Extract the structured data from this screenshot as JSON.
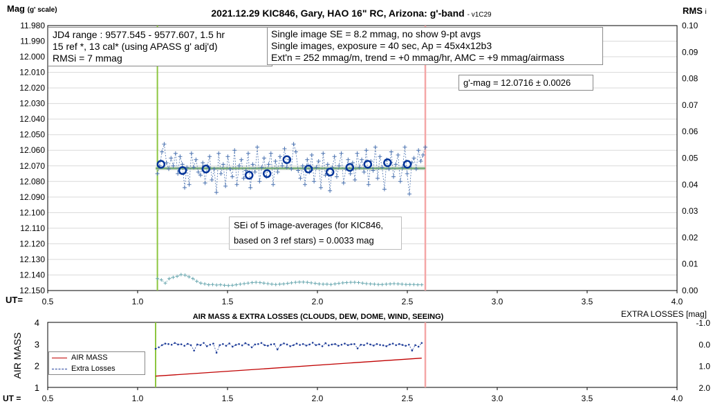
{
  "top_chart": {
    "title_main": "2021.12.29 KIC846, Gary, HAO 16\" RC, Arizona: g'-band",
    "title_version": "- v1C29",
    "ylabel_left_main": "Mag",
    "ylabel_left_sub": "(g' scale)",
    "ylabel_right_main": "RMS",
    "ylabel_right_sub": "i",
    "ut_label": "UT=",
    "info_box_left": [
      "JD4 range : 9577.545 - 9577.607,  1.5  hr",
      "15 ref *, 13 cal* (using APASS g' adj'd)",
      "RMSi = 7 mmag"
    ],
    "info_box_right": [
      "Single image SE = 8.2 mmag, no show  9-pt avgs",
      "Single images, exposure = 40 sec, Ap = 45x4x12b3",
      "Ext'n = 252 mmag/m, trend = +0 mmag/hr, AMC = +9 mmag/airmass"
    ],
    "gmag_box": "g'-mag = 12.0716 ± 0.0026",
    "sei_box": [
      "SEi of 5 image-averages (for KIC846,",
      "based on 3 ref stars) = 0.0033 mag"
    ]
  },
  "bottom_chart": {
    "title": "AIR MASS & EXTRA LOSSES (CLOUDS, DEW, DOME, WIND, SEEING)",
    "ylabel_left": "AIR MASS",
    "ylabel_right": "EXTRA LOSSES [mag]",
    "ut_label": "UT =",
    "legend": [
      "AIR MASS",
      "Extra Losses"
    ]
  },
  "colors": {
    "mag_series": "#4a72b0",
    "avg_marker": "#003399",
    "fit_line": "#6aa56a",
    "rms_series": "#6aa8b0",
    "start_line": "#8cc63f",
    "end_line": "#f4a6a6",
    "airmass": "#c00000",
    "extra_losses": "#1f3d99"
  },
  "chart_data": [
    {
      "type": "scatter",
      "title": "2021.12.29 KIC846, Gary, HAO 16\" RC, Arizona: g'-band",
      "xlabel": "UT=",
      "ylabel": "Mag (g' scale)",
      "y2label": "RMS i",
      "xlim": [
        0.5,
        4.0
      ],
      "x_ticks": [
        "0.5",
        "1.0",
        "1.5",
        "2.0",
        "2.5",
        "3.0",
        "3.5",
        "4.0"
      ],
      "ylim": [
        11.98,
        12.15
      ],
      "y_inverted": true,
      "y_ticks": [
        "11.980",
        "11.990",
        "12.000",
        "12.010",
        "12.020",
        "12.030",
        "12.040",
        "12.050",
        "12.060",
        "12.070",
        "12.080",
        "12.090",
        "12.100",
        "12.110",
        "12.120",
        "12.130",
        "12.140",
        "12.150"
      ],
      "y2lim": [
        0.0,
        0.1
      ],
      "y2_ticks": [
        "0.00",
        "0.01",
        "0.02",
        "0.03",
        "0.04",
        "0.05",
        "0.06",
        "0.07",
        "0.08",
        "0.09",
        "0.10"
      ],
      "grid": "horizontal",
      "vertical_markers": {
        "start": 1.11,
        "end": 2.6
      },
      "fit_line": {
        "x": [
          1.1,
          2.6
        ],
        "y": 12.0716
      },
      "series": [
        {
          "role": "single_images",
          "x_range": [
            1.11,
            2.6
          ],
          "y": [
            12.075,
            12.07,
            12.061,
            12.056,
            12.068,
            12.072,
            12.065,
            12.07,
            12.062,
            12.075,
            12.064,
            12.069,
            12.084,
            12.071,
            12.082,
            12.062,
            12.071,
            12.066,
            12.074,
            12.076,
            12.068,
            12.081,
            12.07,
            12.064,
            12.079,
            12.072,
            12.087,
            12.062,
            12.075,
            12.069,
            12.083,
            12.064,
            12.072,
            12.077,
            12.06,
            12.082,
            12.07,
            12.066,
            12.078,
            12.073,
            12.062,
            12.084,
            12.069,
            12.074,
            12.058,
            12.08,
            12.071,
            12.065,
            12.077,
            12.069,
            12.062,
            12.082,
            12.067,
            12.074,
            12.064,
            12.07,
            12.059,
            12.071,
            12.066,
            12.072,
            12.056,
            12.061,
            12.073,
            12.078,
            12.07,
            12.082,
            12.066,
            12.074,
            12.063,
            12.08,
            12.071,
            12.067,
            12.084,
            12.062,
            12.076,
            12.069,
            12.086,
            12.071,
            12.064,
            12.077,
            12.07,
            12.062,
            12.081,
            12.072,
            12.066,
            12.075,
            12.068,
            12.079,
            12.062,
            12.071,
            12.066,
            12.074,
            12.06,
            12.082,
            12.067,
            12.073,
            12.058,
            12.078,
            12.064,
            12.071,
            12.085,
            12.066,
            12.072,
            12.061,
            12.077,
            12.069,
            12.063,
            12.08,
            12.071,
            12.058,
            12.075,
            12.088,
            12.068,
            12.065,
            12.072,
            12.06,
            12.067,
            12.063,
            12.058
          ]
        },
        {
          "role": "image_averages",
          "x": [
            1.13,
            1.25,
            1.38,
            1.62,
            1.72,
            1.83,
            1.95,
            2.07,
            2.18,
            2.28,
            2.39,
            2.5
          ],
          "y": [
            12.069,
            12.073,
            12.072,
            12.076,
            12.075,
            12.066,
            12.072,
            12.074,
            12.071,
            12.069,
            12.068,
            12.069
          ]
        },
        {
          "role": "rms_i",
          "axis": "right",
          "x_range": [
            1.11,
            2.58
          ],
          "y": [
            0.0045,
            0.004,
            0.0028,
            0.0045,
            0.005,
            0.0054,
            0.006,
            0.0058,
            0.0052,
            0.0045,
            0.0035,
            0.0028,
            0.0025,
            0.0022,
            0.0023,
            0.0021,
            0.0022,
            0.002,
            0.0019,
            0.002,
            0.0022,
            0.0024,
            0.0026,
            0.0028,
            0.003,
            0.0031,
            0.003,
            0.0028,
            0.0026,
            0.0024,
            0.0023,
            0.0024,
            0.0025,
            0.0027,
            0.0029,
            0.0031,
            0.0032,
            0.0032,
            0.0031,
            0.0029,
            0.0027,
            0.0025,
            0.0024,
            0.0024,
            0.0023,
            0.0025,
            0.0027,
            0.0029,
            0.003,
            0.0031,
            0.0031,
            0.003,
            0.0028,
            0.0026,
            0.0025,
            0.0024,
            0.0023,
            0.0023,
            0.0024,
            0.0025,
            0.0026,
            0.0025,
            0.0024,
            0.0023,
            0.0023,
            0.0023,
            0.0022,
            0.0022
          ]
        }
      ]
    },
    {
      "type": "line",
      "title": "AIR MASS & EXTRA LOSSES (CLOUDS, DEW, DOME, WIND, SEEING)",
      "xlabel": "UT =",
      "ylabel": "AIR MASS",
      "y2label": "EXTRA LOSSES [mag]",
      "xlim": [
        0.5,
        4.0
      ],
      "x_ticks": [
        "0.5",
        "1.0",
        "1.5",
        "2.0",
        "2.5",
        "3.0",
        "3.5",
        "4.0"
      ],
      "ylim": [
        1,
        4
      ],
      "y_ticks": [
        "1",
        "2",
        "3",
        "4"
      ],
      "y2lim": [
        2.0,
        -1.0
      ],
      "y2_ticks": [
        "-1.0",
        "0.0",
        "1.0",
        "2.0"
      ],
      "legend_position": "bottom-left",
      "vertical_markers": {
        "start": 1.1,
        "end": 2.6
      },
      "series": [
        {
          "name": "AIR MASS",
          "axis": "left",
          "x": [
            1.1,
            2.58
          ],
          "y": [
            1.52,
            2.35
          ]
        },
        {
          "name": "Extra Losses",
          "axis": "right",
          "x_range": [
            1.1,
            2.58
          ],
          "y": [
            0.22,
            0.15,
            0.05,
            -0.02,
            0.0,
            0.03,
            -0.05,
            0.02,
            0.01,
            0.08,
            -0.01,
            0.05,
            0.3,
            0.02,
            0.05,
            -0.05,
            0.1,
            0.03,
            -0.02,
            0.4,
            0.05,
            0.0,
            0.08,
            -0.03,
            0.12,
            0.04,
            0.0,
            0.06,
            -0.04,
            0.03,
            0.15,
            0.02,
            0.0,
            -0.05,
            0.05,
            0.08,
            0.02,
            0.0,
            0.25,
            0.04,
            -0.03,
            0.02,
            0.1,
            0.05,
            -0.02,
            0.04,
            0.0,
            0.07,
            0.02,
            -0.06,
            0.05,
            0.01,
            0.1,
            -0.04,
            0.06,
            0.02,
            0.0,
            0.08,
            0.03,
            -0.02,
            0.05,
            0.01,
            0.0,
            0.2,
            0.03,
            0.05,
            -0.03,
            0.02,
            0.07,
            0.0,
            0.04,
            0.06,
            0.1,
            0.02,
            -0.02,
            0.05,
            0.0,
            0.04,
            0.08,
            0.03,
            0.3,
            0.05,
            0.12,
            -0.05
          ]
        }
      ]
    }
  ]
}
